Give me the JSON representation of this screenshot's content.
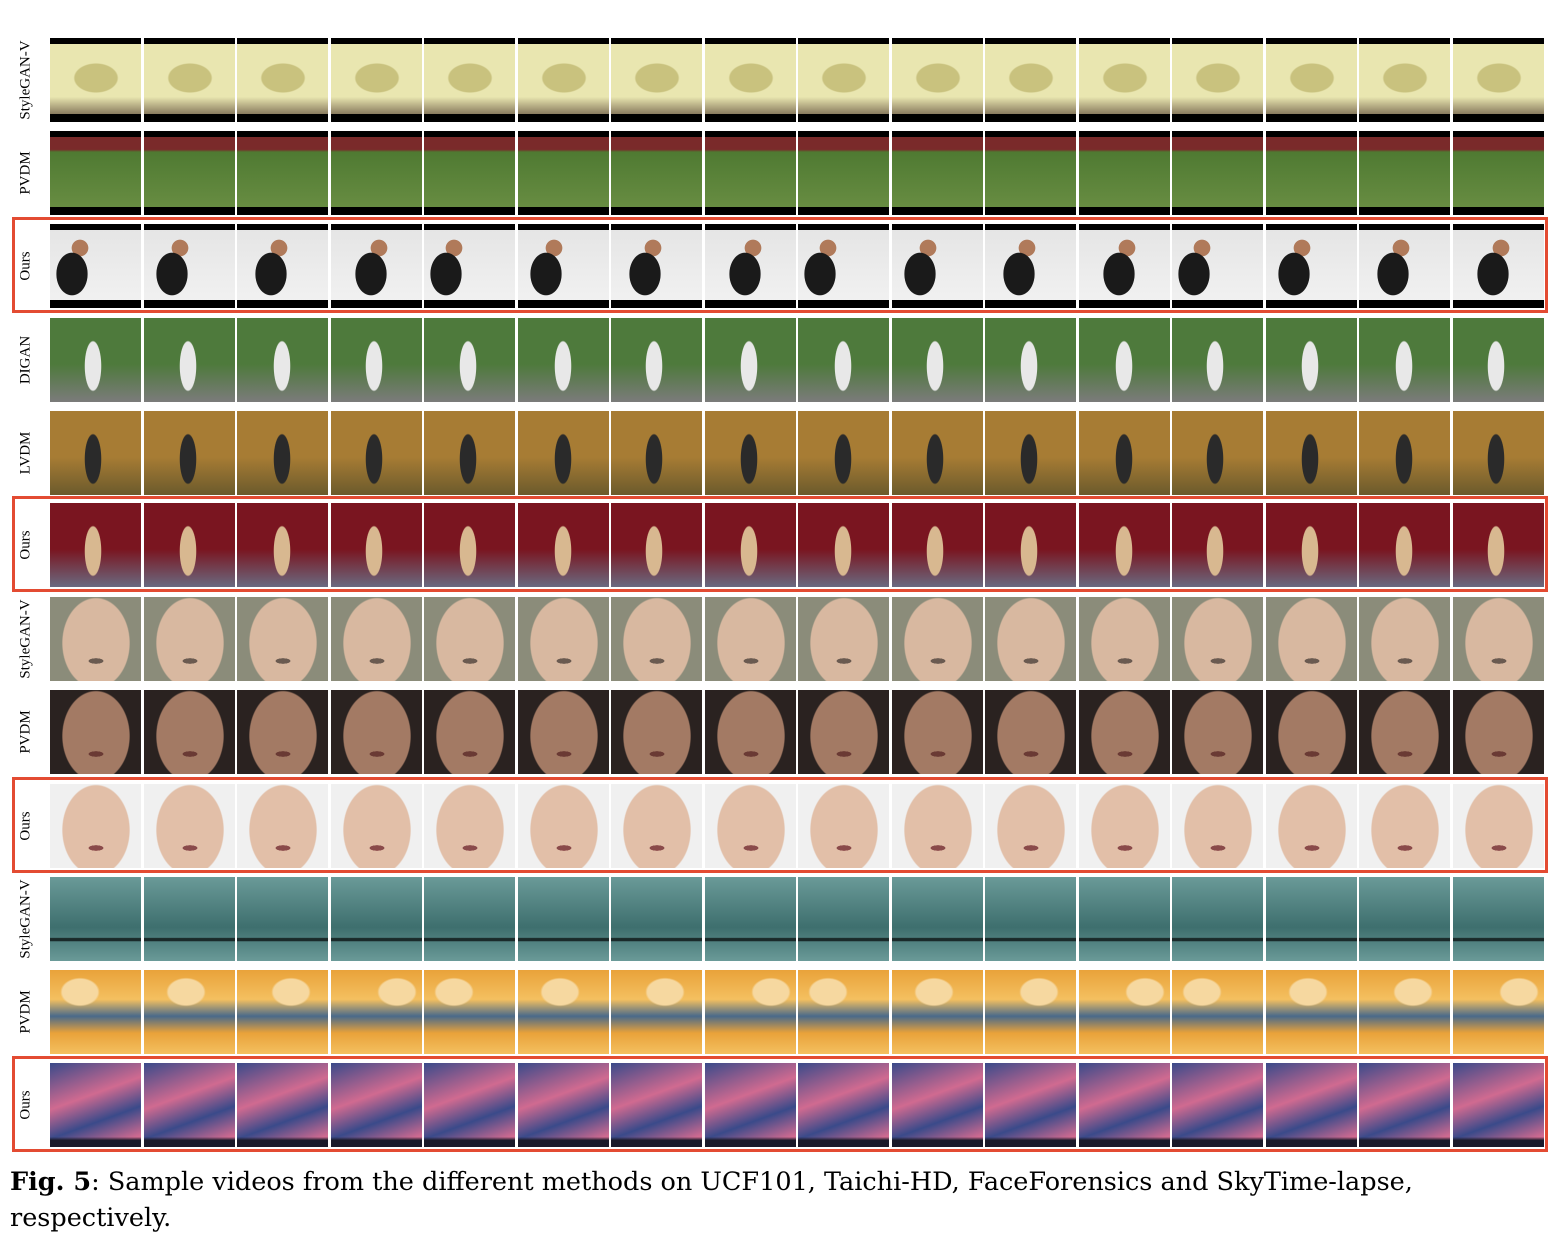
{
  "figure": {
    "frames_per_row": 16,
    "rows": [
      {
        "label": "StyleGAN-V",
        "content": "gym-gymnast",
        "highlight": false,
        "bars": true,
        "colors": [
          "#e9e6b0",
          "#c9c27e",
          "#5d4a3a"
        ]
      },
      {
        "label": "PVDM",
        "content": "stadium",
        "highlight": false,
        "bars": true,
        "colors": [
          "#4f7a32",
          "#6b8f44",
          "#7a2a2a"
        ]
      },
      {
        "label": "Ours",
        "content": "punching",
        "highlight": true,
        "bars": true,
        "colors": [
          "#e4e4e4",
          "#1a1a1a",
          "#b07a5a"
        ]
      },
      {
        "label": "DIGAN",
        "content": "forest-road",
        "highlight": false,
        "bars": false,
        "colors": [
          "#4e7a3c",
          "#7b7b7b",
          "#e8e8e8"
        ]
      },
      {
        "label": "LVDM",
        "content": "autumn-park",
        "highlight": false,
        "bars": false,
        "colors": [
          "#a77c34",
          "#6b5a2c",
          "#2a2a2a"
        ]
      },
      {
        "label": "Ours",
        "content": "red-curtain",
        "highlight": true,
        "bars": false,
        "colors": [
          "#7a1520",
          "#6a6a80",
          "#d8b890"
        ]
      },
      {
        "label": "StyleGAN-V",
        "content": "face-light",
        "highlight": false,
        "bars": false,
        "colors": [
          "#8b8c7a",
          "#d8b8a0",
          "#6a5a50"
        ]
      },
      {
        "label": "PVDM",
        "content": "face-dark",
        "highlight": false,
        "bars": false,
        "colors": [
          "#2a2220",
          "#a37a64",
          "#6a3a34"
        ]
      },
      {
        "label": "Ours",
        "content": "face-pale",
        "highlight": true,
        "bars": false,
        "colors": [
          "#f0f0f0",
          "#e2bfa8",
          "#8a4a4a"
        ]
      },
      {
        "label": "StyleGAN-V",
        "content": "sky-teal",
        "highlight": false,
        "bars": false,
        "colors": [
          "#3e6f6e",
          "#6a9a98",
          "#1a2a2a"
        ]
      },
      {
        "label": "PVDM",
        "content": "sky-sunset",
        "highlight": false,
        "bars": false,
        "colors": [
          "#e9a23a",
          "#4a6a8a",
          "#f4c060"
        ]
      },
      {
        "label": "Ours",
        "content": "sky-pink",
        "highlight": true,
        "bars": false,
        "colors": [
          "#3a4a8a",
          "#d06a90",
          "#1a1a2a"
        ]
      }
    ]
  },
  "caption": {
    "label": "Fig. 5",
    "text": ": Sample videos from the different methods on UCF101, Taichi-HD, FaceForensics and SkyTime-lapse, respectively."
  }
}
